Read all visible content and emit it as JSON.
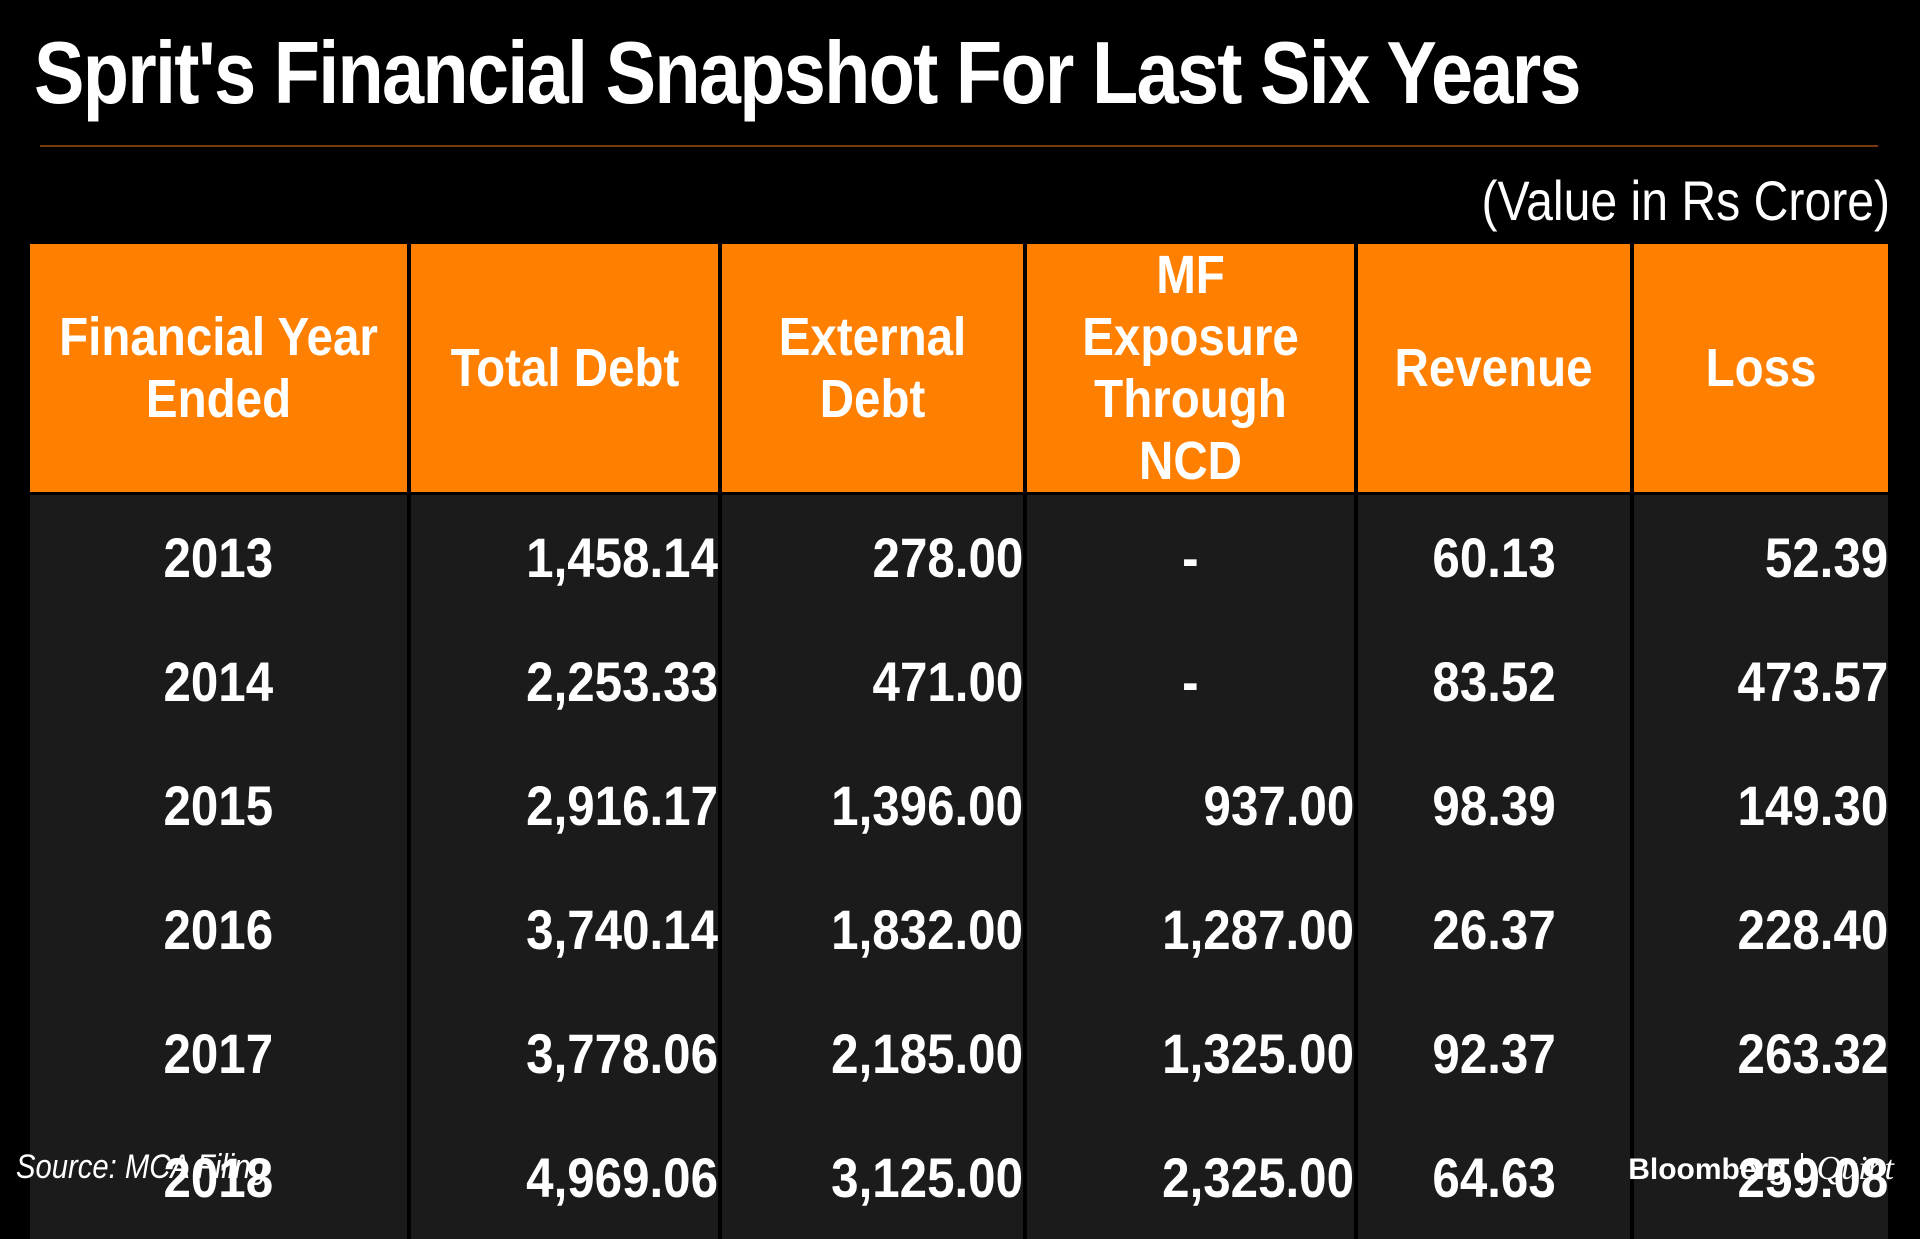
{
  "title": "Sprit's Financial Snapshot For Last Six Years",
  "unit_note": "(Value in Rs Crore)",
  "colors": {
    "header_bg": "#ff7f00",
    "body_bg": "#1b1b1b",
    "page_bg": "#000000",
    "text": "#ffffff"
  },
  "chart_data": {
    "type": "table",
    "title": "Sprit's Financial Snapshot For Last Six Years",
    "unit": "(Value in Rs Crore)",
    "columns": [
      "Financial Year Ended",
      "Total Debt",
      "External Debt",
      "MF Exposure Through NCD",
      "Revenue",
      "Loss"
    ],
    "rows": [
      [
        "2013",
        "1,458.14",
        "278.00",
        "-",
        "60.13",
        "52.39"
      ],
      [
        "2014",
        "2,253.33",
        "471.00",
        "-",
        "83.52",
        "473.57"
      ],
      [
        "2015",
        "2,916.17",
        "1,396.00",
        "937.00",
        "98.39",
        "149.30"
      ],
      [
        "2016",
        "3,740.14",
        "1,832.00",
        "1,287.00",
        "26.37",
        "228.40"
      ],
      [
        "2017",
        "3,778.06",
        "2,185.00",
        "1,325.00",
        "92.37",
        "263.32"
      ],
      [
        "2018",
        "4,969.06",
        "3,125.00",
        "2,325.00",
        "64.63",
        "259.08"
      ]
    ]
  },
  "footer": {
    "source": "Source: MCA Filing",
    "brand_left": "Bloomberg",
    "brand_right": "Quint"
  }
}
